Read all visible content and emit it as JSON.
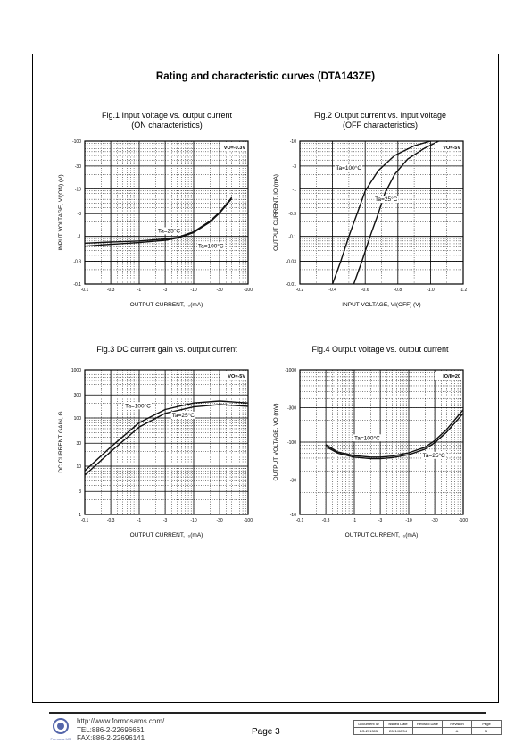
{
  "page": {
    "title": "Rating and characteristic curves (DTA143ZE)",
    "footer": {
      "url": "http://www.formosams.com/",
      "tel": "TEL:886-2-22696661",
      "fax": "FAX:886-2-22696141",
      "page_label": "Page 3",
      "logo_text": "Formosa MS",
      "doc_table": {
        "headers": [
          "Document ID",
          "Issued Date",
          "Revised Date",
          "Revision",
          "Page"
        ],
        "values": [
          "DS-231305",
          "2021/08/04",
          "",
          "A",
          "5"
        ]
      }
    }
  },
  "chart_data": [
    {
      "type": "line",
      "fig_title": [
        "Fig.1  Input voltage vs. output current",
        "(ON characteristics)"
      ],
      "xlabel": "OUTPUT  CURRENT, I₀(mA)",
      "ylabel": "INPUT  VOLTAGE, VI(ON) (V)",
      "x_scale": "log",
      "y_scale": "log",
      "xlim": [
        -0.1,
        -100
      ],
      "ylim": [
        -0.1,
        -100
      ],
      "xticks": [
        "-0.1",
        "-0.3",
        "-1",
        "-3",
        "-10",
        "-30",
        "-100"
      ],
      "yticks": [
        "-0.1",
        "-0.3",
        "-1",
        "-3",
        "-10",
        "-30",
        "-100"
      ],
      "condition_label": "VO=-0.3V",
      "series": [
        {
          "name": "Ta=25°C",
          "x": [
            -0.1,
            -0.3,
            -1,
            -3,
            -5,
            -10,
            -20,
            -30,
            -50
          ],
          "y": [
            -0.72,
            -0.76,
            -0.8,
            -0.88,
            -0.95,
            -1.25,
            -2.1,
            -3.2,
            -6.5
          ]
        },
        {
          "name": "Ta=100°C",
          "x": [
            -0.1,
            -0.3,
            -1,
            -3,
            -5,
            -10,
            -20,
            -30,
            -50
          ],
          "y": [
            -0.62,
            -0.68,
            -0.74,
            -0.83,
            -0.92,
            -1.2,
            -2.0,
            -3.1,
            -6.2
          ]
        }
      ],
      "annotations": [
        {
          "text": "Ta=25°C",
          "x": -2.2,
          "y": -1.2
        },
        {
          "text": "Ta=100°C",
          "x": -12,
          "y": -0.58
        }
      ]
    },
    {
      "type": "line",
      "fig_title": [
        "Fig.2 Output current vs. Input voltage",
        "(OFF characteristics)"
      ],
      "xlabel": "INPUT VOLTAGE, VI(OFF) (V)",
      "ylabel": "OUTPUT  CURRENT, IO (mA)",
      "x_scale": "linear",
      "y_scale": "log",
      "xlim": [
        -0.2,
        -1.2
      ],
      "ylim": [
        -0.01,
        -10
      ],
      "xticks": [
        "-0.2",
        "-0.4",
        "-0.6",
        "-0.8",
        "-1.0",
        "-1.2"
      ],
      "yticks": [
        "-0.01",
        "-0.03",
        "-0.1",
        "-0.3",
        "-1",
        "-3",
        "-10"
      ],
      "condition_label": "VO=-5V",
      "series": [
        {
          "name": "Ta=100°C",
          "x": [
            -0.4,
            -0.45,
            -0.5,
            -0.55,
            -0.6,
            -0.68,
            -0.78,
            -0.9,
            -1.0
          ],
          "y": [
            -0.01,
            -0.03,
            -0.1,
            -0.3,
            -0.9,
            -2.4,
            -5,
            -8,
            -10
          ]
        },
        {
          "name": "Ta=25°C",
          "x": [
            -0.53,
            -0.58,
            -0.63,
            -0.68,
            -0.72,
            -0.78,
            -0.86,
            -0.96,
            -1.05
          ],
          "y": [
            -0.01,
            -0.03,
            -0.1,
            -0.3,
            -0.8,
            -2.0,
            -4.2,
            -7,
            -10
          ]
        }
      ],
      "annotations": [
        {
          "text": "Ta=100°C",
          "x": -0.42,
          "y": -2.5
        },
        {
          "text": "Ta=25°C",
          "x": -0.66,
          "y": -0.55
        }
      ]
    },
    {
      "type": "line",
      "fig_title": [
        "Fig.3 DC current gain vs. output current"
      ],
      "xlabel": "OUTPUT  CURRENT, I₀(mA)",
      "ylabel": "DC CURRENT GAIN, G",
      "x_scale": "log",
      "y_scale": "log",
      "xlim": [
        -0.1,
        -100
      ],
      "ylim": [
        1,
        1000
      ],
      "xticks": [
        "-0.1",
        "-0.3",
        "-1",
        "-3",
        "-10",
        "-30",
        "-100"
      ],
      "yticks": [
        "1",
        "3",
        "10",
        "30",
        "100",
        "300",
        "1000"
      ],
      "condition_label": "VO=-5V",
      "series": [
        {
          "name": "Ta=100°C",
          "x": [
            -0.1,
            -0.3,
            -1,
            -3,
            -10,
            -30,
            -100
          ],
          "y": [
            8,
            25,
            80,
            150,
            205,
            225,
            205
          ]
        },
        {
          "name": "Ta=25°C",
          "x": [
            -0.1,
            -0.3,
            -1,
            -3,
            -10,
            -30,
            -100
          ],
          "y": [
            6.5,
            20,
            65,
            125,
            170,
            190,
            175
          ]
        }
      ],
      "annotations": [
        {
          "text": "Ta=100°C",
          "x": -0.55,
          "y": 165
        },
        {
          "text": "Ta=25°C",
          "x": -4,
          "y": 105
        }
      ]
    },
    {
      "type": "line",
      "fig_title": [
        "Fig.4 Output voltage vs. output current"
      ],
      "xlabel": "OUTPUT  CURRENT, I₀(mA)",
      "ylabel": "OUTPUT VOLTAGE, VO (mV)",
      "x_scale": "log",
      "y_scale": "log",
      "xlim": [
        -0.1,
        -100
      ],
      "ylim": [
        -10,
        -1000
      ],
      "xticks": [
        "-0.1",
        "-0.3",
        "-1",
        "-3",
        "-10",
        "-30",
        "-100"
      ],
      "yticks": [
        "-10",
        "-30",
        "-100",
        "-300",
        "-1000"
      ],
      "condition_label": "IO/II=20",
      "series": [
        {
          "name": "Ta=100°C",
          "x": [
            -0.3,
            -0.5,
            -1,
            -2,
            -3,
            -5,
            -10,
            -20,
            -30,
            -50,
            -100
          ],
          "y": [
            -92,
            -73,
            -65,
            -62,
            -62,
            -64,
            -71,
            -85,
            -105,
            -150,
            -280
          ]
        },
        {
          "name": "Ta=25°C",
          "x": [
            -0.3,
            -0.5,
            -1,
            -2,
            -3,
            -5,
            -10,
            -20,
            -30,
            -50,
            -100
          ],
          "y": [
            -87,
            -70,
            -62,
            -59,
            -59,
            -61,
            -67,
            -80,
            -98,
            -138,
            -250
          ]
        }
      ],
      "annotations": [
        {
          "text": "Ta=100°C",
          "x": -1.0,
          "y": -108
        },
        {
          "text": "Ta=25°C",
          "x": -18,
          "y": -62
        }
      ]
    }
  ]
}
